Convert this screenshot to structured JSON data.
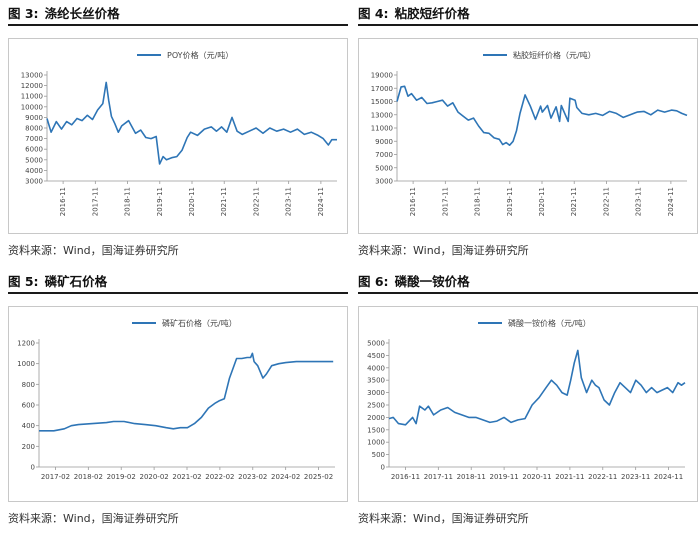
{
  "panels": [
    {
      "figure_no": "图 3:",
      "title": "涤纶长丝价格",
      "source": "资料来源：Wind，国海证券研究所",
      "chart_data": {
        "type": "line",
        "series": [
          {
            "name": "POY价格（元/吨）"
          }
        ],
        "color": "#2e75b6",
        "y_ticks": [
          3000,
          4000,
          5000,
          6000,
          7000,
          8000,
          9000,
          10000,
          11000,
          12000,
          13000
        ],
        "ylim": [
          3000,
          13000
        ],
        "x_tick_labels": [
          "2016-11",
          "2017-11",
          "2018-11",
          "2019-11",
          "2020-11",
          "2021-11",
          "2022-11",
          "2023-11",
          "2024-11"
        ],
        "xlim": [
          2016.83,
          2025.25
        ],
        "x": [
          2016.83,
          2016.95,
          2017.1,
          2017.25,
          2017.4,
          2017.55,
          2017.7,
          2017.85,
          2018.0,
          2018.15,
          2018.3,
          2018.45,
          2018.55,
          2018.62,
          2018.7,
          2018.8,
          2018.9,
          2019.0,
          2019.2,
          2019.4,
          2019.55,
          2019.7,
          2019.85,
          2020.0,
          2020.1,
          2020.2,
          2020.3,
          2020.45,
          2020.6,
          2020.75,
          2020.9,
          2021.0,
          2021.2,
          2021.4,
          2021.6,
          2021.75,
          2021.9,
          2022.05,
          2022.2,
          2022.35,
          2022.5,
          2022.7,
          2022.9,
          2023.1,
          2023.3,
          2023.5,
          2023.7,
          2023.9,
          2024.1,
          2024.3,
          2024.5,
          2024.7,
          2024.85,
          2025.0,
          2025.1,
          2025.25
        ],
        "y": [
          8900,
          7600,
          8600,
          7900,
          8600,
          8300,
          8900,
          8700,
          9200,
          8800,
          9700,
          10300,
          12300,
          10600,
          9100,
          8400,
          7600,
          8200,
          8700,
          7500,
          7800,
          7100,
          7000,
          7200,
          4600,
          5300,
          5000,
          5200,
          5300,
          5900,
          7100,
          7600,
          7300,
          7900,
          8100,
          7700,
          8100,
          7600,
          9000,
          7700,
          7400,
          7700,
          8000,
          7500,
          8000,
          7700,
          7900,
          7600,
          7900,
          7400,
          7600,
          7300,
          7000,
          6400,
          6900,
          6900
        ]
      }
    },
    {
      "figure_no": "图 4:",
      "title": "粘胶短纤价格",
      "source": "资料来源：Wind，国海证券研究所",
      "chart_data": {
        "type": "line",
        "series": [
          {
            "name": "粘胶短纤价格（元/吨）"
          }
        ],
        "color": "#2e75b6",
        "y_ticks": [
          3000,
          5000,
          7000,
          9000,
          11000,
          13000,
          15000,
          17000,
          19000
        ],
        "ylim": [
          3000,
          19000
        ],
        "x_tick_labels": [
          "2016-11",
          "2017-11",
          "2018-11",
          "2019-11",
          "2020-11",
          "2021-11",
          "2022-11",
          "2023-11",
          "2024-11"
        ],
        "xlim": [
          2016.83,
          2025.25
        ],
        "x": [
          2016.83,
          2016.95,
          2017.05,
          2017.15,
          2017.25,
          2017.4,
          2017.55,
          2017.7,
          2017.85,
          2018.0,
          2018.15,
          2018.3,
          2018.45,
          2018.6,
          2018.75,
          2018.9,
          2019.05,
          2019.2,
          2019.35,
          2019.5,
          2019.65,
          2019.8,
          2019.9,
          2020.0,
          2020.1,
          2020.2,
          2020.3,
          2020.4,
          2020.55,
          2020.7,
          2020.85,
          2021.0,
          2021.05,
          2021.2,
          2021.3,
          2021.45,
          2021.55,
          2021.6,
          2021.8,
          2021.85,
          2022.0,
          2022.05,
          2022.2,
          2022.4,
          2022.6,
          2022.8,
          2023.0,
          2023.2,
          2023.4,
          2023.6,
          2023.8,
          2024.0,
          2024.2,
          2024.4,
          2024.6,
          2024.8,
          2024.95,
          2025.1,
          2025.25
        ],
        "y": [
          15000,
          17200,
          17300,
          15800,
          16200,
          15200,
          15600,
          14700,
          14800,
          15000,
          15200,
          14300,
          14800,
          13400,
          12800,
          12200,
          12500,
          11300,
          10300,
          10200,
          9500,
          9300,
          8500,
          8800,
          8400,
          9000,
          10600,
          13200,
          16000,
          14300,
          12300,
          14300,
          13400,
          14400,
          12500,
          14200,
          12000,
          14400,
          12000,
          15500,
          15200,
          14100,
          13200,
          13000,
          13200,
          12900,
          13500,
          13200,
          12600,
          13000,
          13400,
          13500,
          13000,
          13700,
          13400,
          13700,
          13600,
          13200,
          12900
        ]
      }
    },
    {
      "figure_no": "图 5:",
      "title": "磷矿石价格",
      "source": "资料来源：Wind，国海证券研究所",
      "chart_data": {
        "type": "line",
        "series": [
          {
            "name": "磷矿石价格（元/吨）"
          }
        ],
        "color": "#2e75b6",
        "y_ticks": [
          0,
          200,
          400,
          600,
          800,
          1000,
          1200
        ],
        "ylim": [
          0,
          1200
        ],
        "x_tick_labels": [
          "2017-02",
          "2018-02",
          "2019-02",
          "2020-02",
          "2021-02",
          "2022-02",
          "2023-02",
          "2024-02",
          "2025-02"
        ],
        "xlim": [
          2017.08,
          2025.5
        ],
        "x": [
          2017.08,
          2017.5,
          2017.8,
          2018.0,
          2018.2,
          2018.6,
          2019.0,
          2019.2,
          2019.5,
          2019.8,
          2020.1,
          2020.4,
          2020.7,
          2020.9,
          2021.1,
          2021.3,
          2021.5,
          2021.7,
          2021.9,
          2022.1,
          2022.2,
          2022.35,
          2022.5,
          2022.7,
          2022.85,
          2023.0,
          2023.1,
          2023.15,
          2023.2,
          2023.3,
          2023.45,
          2023.55,
          2023.7,
          2023.9,
          2024.1,
          2024.4,
          2024.7,
          2025.0,
          2025.3,
          2025.45
        ],
        "y": [
          350,
          350,
          370,
          400,
          410,
          420,
          430,
          440,
          440,
          420,
          410,
          400,
          380,
          370,
          380,
          380,
          420,
          480,
          570,
          620,
          640,
          660,
          860,
          1050,
          1050,
          1060,
          1060,
          1100,
          1020,
          980,
          860,
          900,
          980,
          1000,
          1010,
          1020,
          1020,
          1020,
          1020,
          1020
        ]
      }
    },
    {
      "figure_no": "图 6:",
      "title": "磷酸一铵价格",
      "source": "资料来源：Wind，国海证券研究所",
      "chart_data": {
        "type": "line",
        "series": [
          {
            "name": "磷酸一铵价格（元/吨）"
          }
        ],
        "color": "#2e75b6",
        "y_ticks": [
          0,
          500,
          1000,
          1500,
          2000,
          2500,
          3000,
          3500,
          4000,
          4500,
          5000
        ],
        "ylim": [
          0,
          5000
        ],
        "x_tick_labels": [
          "2016-11",
          "2017-11",
          "2018-11",
          "2019-11",
          "2020-11",
          "2021-11",
          "2022-11",
          "2023-11",
          "2024-11"
        ],
        "xlim": [
          2016.83,
          2025.25
        ],
        "x": [
          2016.83,
          2016.95,
          2017.1,
          2017.3,
          2017.5,
          2017.6,
          2017.7,
          2017.85,
          2017.95,
          2018.1,
          2018.3,
          2018.5,
          2018.7,
          2018.9,
          2019.1,
          2019.3,
          2019.5,
          2019.7,
          2019.9,
          2020.1,
          2020.3,
          2020.5,
          2020.7,
          2020.9,
          2021.1,
          2021.3,
          2021.45,
          2021.6,
          2021.75,
          2021.9,
          2022.0,
          2022.1,
          2022.2,
          2022.3,
          2022.45,
          2022.6,
          2022.7,
          2022.8,
          2022.95,
          2023.1,
          2023.25,
          2023.4,
          2023.55,
          2023.7,
          2023.85,
          2024.0,
          2024.15,
          2024.3,
          2024.45,
          2024.6,
          2024.75,
          2024.9,
          2025.05,
          2025.15,
          2025.25
        ],
        "y": [
          1950,
          2000,
          1750,
          1700,
          2000,
          1750,
          2450,
          2300,
          2450,
          2100,
          2300,
          2400,
          2200,
          2100,
          2000,
          2000,
          1900,
          1800,
          1850,
          2000,
          1800,
          1900,
          1950,
          2500,
          2800,
          3200,
          3500,
          3300,
          3000,
          2900,
          3500,
          4200,
          4700,
          3600,
          3000,
          3500,
          3300,
          3200,
          2700,
          2500,
          3000,
          3400,
          3200,
          3000,
          3500,
          3300,
          3000,
          3200,
          3000,
          3100,
          3200,
          3000,
          3400,
          3300,
          3400
        ]
      }
    }
  ]
}
